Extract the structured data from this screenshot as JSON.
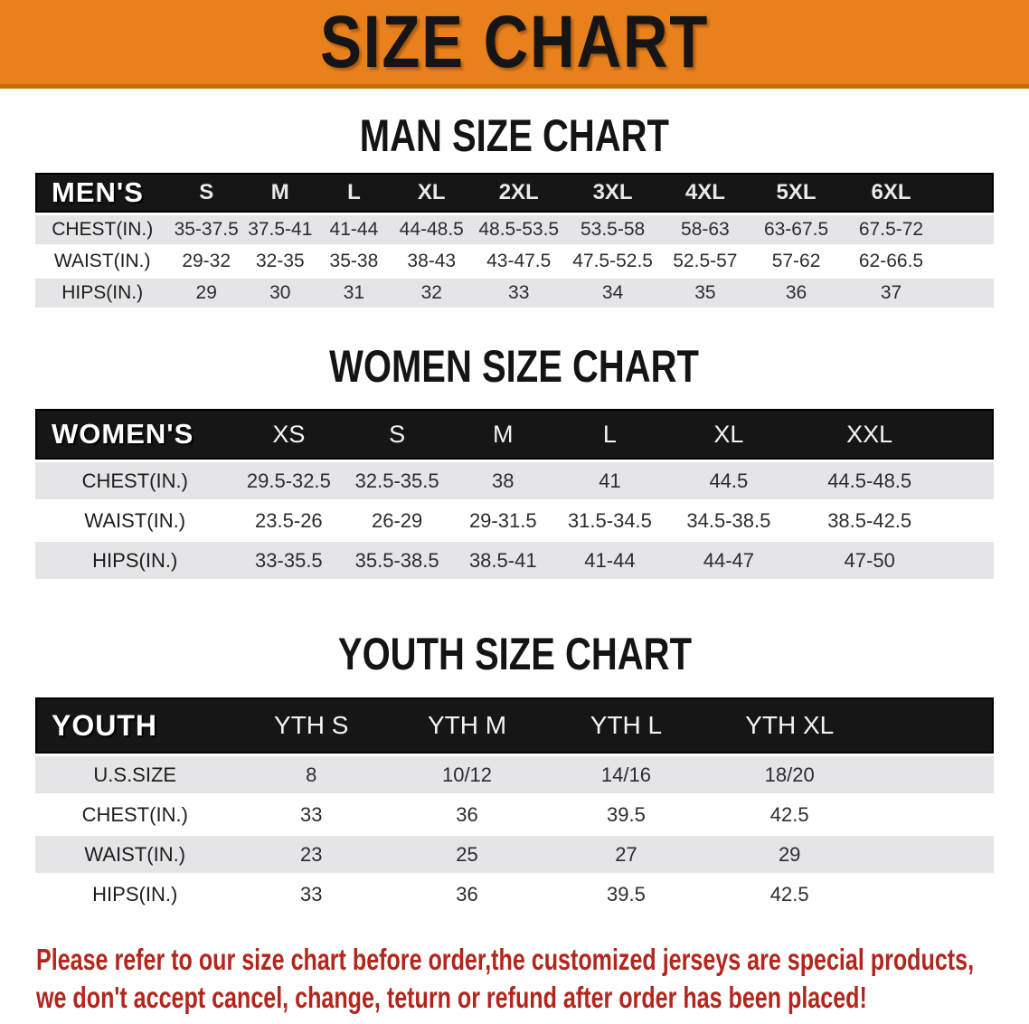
{
  "banner": {
    "title": "SIZE CHART"
  },
  "men": {
    "heading": "MAN SIZE CHART",
    "corner": "MEN'S",
    "sizes": [
      "S",
      "M",
      "L",
      "XL",
      "2XL",
      "3XL",
      "4XL",
      "5XL",
      "6XL"
    ],
    "rows": [
      {
        "label": "CHEST(IN.)",
        "values": [
          "35-37.5",
          "37.5-41",
          "41-44",
          "44-48.5",
          "48.5-53.5",
          "53.5-58",
          "58-63",
          "63-67.5",
          "67.5-72"
        ]
      },
      {
        "label": "WAIST(IN.)",
        "values": [
          "29-32",
          "32-35",
          "35-38",
          "38-43",
          "43-47.5",
          "47.5-52.5",
          "52.5-57",
          "57-62",
          "62-66.5"
        ]
      },
      {
        "label": "HIPS(IN.)",
        "values": [
          "29",
          "30",
          "31",
          "32",
          "33",
          "34",
          "35",
          "36",
          "37"
        ]
      }
    ]
  },
  "women": {
    "heading": "WOMEN SIZE CHART",
    "corner": "WOMEN'S",
    "sizes": [
      "XS",
      "S",
      "M",
      "L",
      "XL",
      "XXL"
    ],
    "rows": [
      {
        "label": "CHEST(IN.)",
        "values": [
          "29.5-32.5",
          "32.5-35.5",
          "38",
          "41",
          "44.5",
          "44.5-48.5"
        ]
      },
      {
        "label": "WAIST(IN.)",
        "values": [
          "23.5-26",
          "26-29",
          "29-31.5",
          "31.5-34.5",
          "34.5-38.5",
          "38.5-42.5"
        ]
      },
      {
        "label": "HIPS(IN.)",
        "values": [
          "33-35.5",
          "35.5-38.5",
          "38.5-41",
          "41-44",
          "44-47",
          "47-50"
        ]
      }
    ]
  },
  "youth": {
    "heading": "YOUTH SIZE CHART",
    "corner": "YOUTH",
    "sizes": [
      "YTH S",
      "YTH M",
      "YTH L",
      "YTH XL"
    ],
    "rows": [
      {
        "label": "U.S.SIZE",
        "values": [
          "8",
          "10/12",
          "14/16",
          "18/20"
        ]
      },
      {
        "label": "CHEST(IN.)",
        "values": [
          "33",
          "36",
          "39.5",
          "42.5"
        ]
      },
      {
        "label": "WAIST(IN.)",
        "values": [
          "23",
          "25",
          "27",
          "29"
        ]
      },
      {
        "label": "HIPS(IN.)",
        "values": [
          "33",
          "36",
          "39.5",
          "42.5"
        ]
      }
    ]
  },
  "footer": {
    "line1": "Please refer to our size chart before order,the customized jerseys are special products,",
    "line2": "we don't accept cancel, change, teturn or refund after order has been placed!"
  },
  "colors": {
    "banner_background": "#E8811C",
    "banner_border": "#C96A0C",
    "table_header_background": "#161616",
    "row_stripe": "#E5E5E7",
    "footer_text": "#B2271D"
  }
}
